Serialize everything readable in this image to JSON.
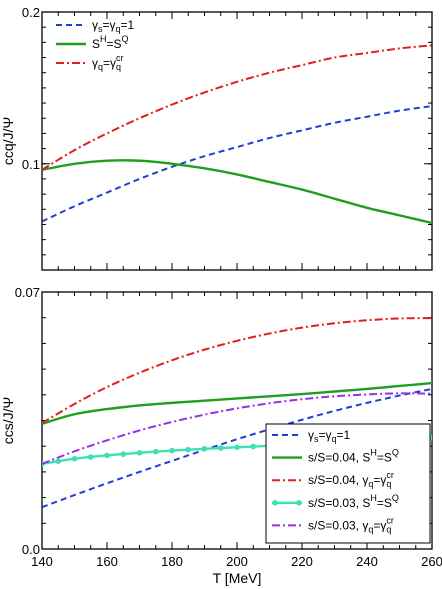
{
  "chart_data": [
    {
      "type": "line",
      "ylabel": "ccq/J/Ψ",
      "xlabel": "",
      "xlim": [
        140,
        260
      ],
      "ylim": [
        0.03,
        0.2
      ],
      "yticklabels": [
        "0.1",
        "0.2"
      ],
      "yticks": [
        0.1,
        0.2
      ],
      "xticks": [
        140,
        160,
        180,
        200,
        220,
        240,
        260
      ],
      "legend_position": "top-left",
      "series": [
        {
          "name": "γs=γq=1",
          "color": "#1f3fd6",
          "dash": "dashed",
          "x": [
            140,
            150,
            160,
            170,
            180,
            190,
            200,
            210,
            220,
            230,
            240,
            250,
            260
          ],
          "y": [
            0.062,
            0.072,
            0.081,
            0.09,
            0.098,
            0.105,
            0.111,
            0.117,
            0.122,
            0.127,
            0.131,
            0.135,
            0.138
          ]
        },
        {
          "name": "SH=SQ",
          "color": "#1f9e1f",
          "dash": "solid",
          "x": [
            140,
            150,
            160,
            170,
            180,
            190,
            200,
            210,
            220,
            230,
            240,
            250,
            260
          ],
          "y": [
            0.096,
            0.1,
            0.102,
            0.102,
            0.1,
            0.097,
            0.093,
            0.088,
            0.083,
            0.077,
            0.071,
            0.066,
            0.061
          ]
        },
        {
          "name": "γq=γqcr",
          "color": "#e01e1e",
          "dash": "dashdot",
          "x": [
            140,
            150,
            160,
            170,
            180,
            190,
            200,
            210,
            220,
            230,
            240,
            250,
            260
          ],
          "y": [
            0.096,
            0.109,
            0.12,
            0.13,
            0.139,
            0.147,
            0.154,
            0.16,
            0.165,
            0.17,
            0.173,
            0.176,
            0.178
          ]
        }
      ]
    },
    {
      "type": "line",
      "ylabel": "ccs/J/Ψ",
      "xlabel": "T [MeV]",
      "xlim": [
        140,
        260
      ],
      "ylim": [
        0,
        0.07
      ],
      "yticklabels": [
        "0.0",
        "0.07"
      ],
      "yticks": [
        0,
        0.07
      ],
      "xticks": [
        140,
        160,
        180,
        200,
        220,
        240,
        260
      ],
      "xticklabels": [
        "140",
        "160",
        "180",
        "200",
        "220",
        "240",
        "260"
      ],
      "legend_position": "bottom-right",
      "series": [
        {
          "name": "γs=γq=1",
          "color": "#1f3fd6",
          "dash": "dashed",
          "x": [
            140,
            150,
            160,
            170,
            180,
            190,
            200,
            210,
            220,
            230,
            240,
            250,
            260
          ],
          "y": [
            0.0114,
            0.0147,
            0.0179,
            0.021,
            0.024,
            0.027,
            0.0299,
            0.0326,
            0.0352,
            0.0376,
            0.0398,
            0.0418,
            0.0436
          ]
        },
        {
          "name": "s/S=0.04, SH=SQ",
          "color": "#1f9e1f",
          "dash": "solid",
          "x": [
            140,
            150,
            160,
            170,
            180,
            190,
            200,
            210,
            220,
            230,
            240,
            250,
            260
          ],
          "y": [
            0.0341,
            0.0367,
            0.0381,
            0.0391,
            0.0398,
            0.0404,
            0.041,
            0.0416,
            0.0422,
            0.0429,
            0.0436,
            0.0444,
            0.0452
          ]
        },
        {
          "name": "s/S=0.04, γq=γqcr",
          "color": "#e01e1e",
          "dash": "dashdot",
          "x": [
            140,
            150,
            160,
            170,
            180,
            190,
            200,
            210,
            220,
            230,
            240,
            250,
            260
          ],
          "y": [
            0.0343,
            0.0395,
            0.0441,
            0.048,
            0.0514,
            0.0543,
            0.0567,
            0.0587,
            0.0603,
            0.0615,
            0.0623,
            0.0628,
            0.0629
          ]
        },
        {
          "name": "s/S=0.03, SH=SQ",
          "color": "#3de0b0",
          "dash": "solid-markers",
          "x": [
            140,
            150,
            160,
            170,
            180,
            190,
            200,
            210,
            220,
            230,
            240,
            250,
            260
          ],
          "y": [
            0.0232,
            0.0246,
            0.0255,
            0.0262,
            0.0268,
            0.0273,
            0.0277,
            0.0281,
            0.0285,
            0.0289,
            0.0293,
            0.0298,
            0.0304
          ]
        },
        {
          "name": "s/S=0.03, γq=γqcr",
          "color": "#9a2ee6",
          "dash": "dashdot",
          "x": [
            140,
            150,
            160,
            170,
            180,
            190,
            200,
            210,
            220,
            230,
            240,
            250,
            260
          ],
          "y": [
            0.0232,
            0.0266,
            0.0296,
            0.0323,
            0.0346,
            0.0366,
            0.0383,
            0.0397,
            0.0408,
            0.0416,
            0.0421,
            0.0424,
            0.0423
          ]
        }
      ]
    }
  ],
  "legend1": {
    "items": [
      {
        "main": "γ",
        "sub1": "s",
        "mid": "=γ",
        "sub2": "q",
        "tail": "=1"
      },
      {
        "main": "S",
        "sup1": "H",
        "mid": "=S",
        "sup2": "Q"
      },
      {
        "main": "γ",
        "sub1": "q",
        "mid": "=γ",
        "sub2": "q",
        "sup2": "cr"
      }
    ]
  },
  "legend2": {
    "items": [
      {
        "main": "γ",
        "sub1": "s",
        "mid": "=γ",
        "sub2": "q",
        "tail": "=1"
      },
      {
        "pre": "s/S=0.04, ",
        "main": "S",
        "sup1": "H",
        "mid": "=S",
        "sup2": "Q"
      },
      {
        "pre": "s/S=0.04, ",
        "main": "γ",
        "sub1": "q",
        "mid": "=γ",
        "sub2": "q",
        "sup2": "cr"
      },
      {
        "pre": "s/S=0.03, ",
        "main": "S",
        "sup1": "H",
        "mid": "=S",
        "sup2": "Q"
      },
      {
        "pre": "s/S=0.03, ",
        "main": "γ",
        "sub1": "q",
        "mid": "=γ",
        "sub2": "q",
        "sup2": "cr"
      }
    ]
  }
}
